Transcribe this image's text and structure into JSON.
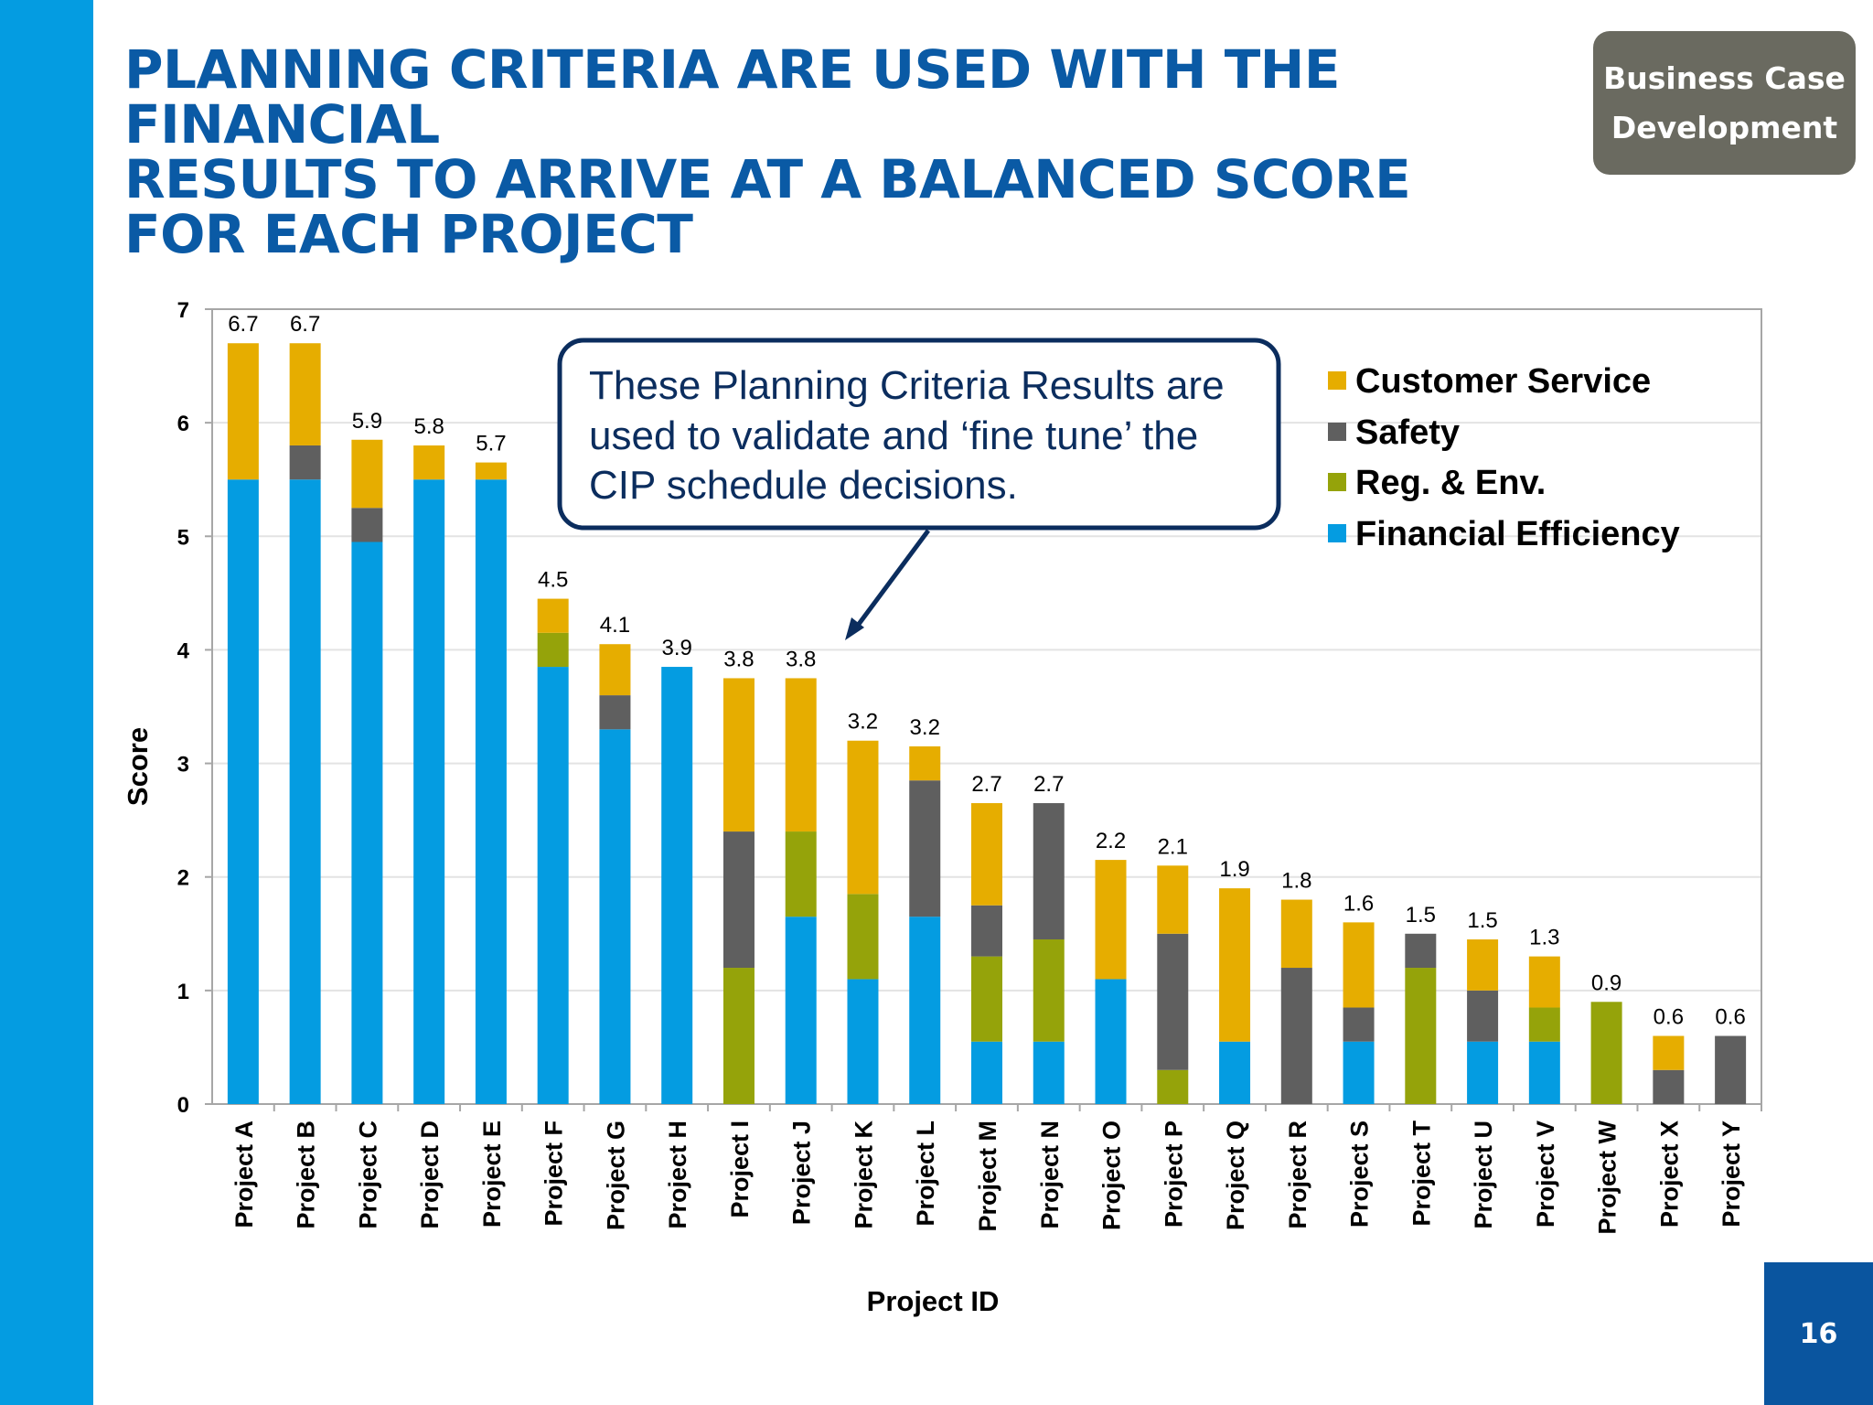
{
  "slide": {
    "title_lines": [
      "PLANNING CRITERIA ARE USED WITH THE FINANCIAL",
      "RESULTS TO ARRIVE AT A BALANCED SCORE",
      "FOR EACH PROJECT"
    ],
    "badge_lines": [
      "Business Case",
      "Development"
    ],
    "page_number": "16",
    "accent_color": "#049ce1",
    "title_color": "#0a5aa5"
  },
  "callout": {
    "lines": [
      "These Planning Criteria Results are",
      "used to validate and ‘fine tune’ the",
      "CIP schedule decisions."
    ]
  },
  "chart_data": {
    "type": "bar",
    "stacked": true,
    "title": "",
    "xlabel": "Project ID",
    "ylabel": "Score",
    "ylim": [
      0,
      7
    ],
    "yticks": [
      0,
      1,
      2,
      3,
      4,
      5,
      6,
      7
    ],
    "grid": true,
    "legend_position": "top-right",
    "categories": [
      "Project A",
      "Project B",
      "Project C",
      "Project D",
      "Project E",
      "Project F",
      "Project G",
      "Project H",
      "Project I",
      "Project J",
      "Project K",
      "Project L",
      "Project M",
      "Project N",
      "Project O",
      "Project P",
      "Project Q",
      "Project R",
      "Project S",
      "Project T",
      "Project U",
      "Project V",
      "Project W",
      "Project X",
      "Project Y"
    ],
    "series": [
      {
        "name": "Financial Efficiency",
        "color": "#049ce1",
        "values": [
          5.5,
          5.5,
          4.95,
          5.5,
          5.5,
          3.85,
          3.3,
          3.85,
          0,
          1.65,
          1.1,
          1.65,
          0.55,
          0.55,
          1.1,
          0,
          0.55,
          0,
          0.55,
          0,
          0.55,
          0.55,
          0,
          0,
          0
        ]
      },
      {
        "name": "Reg. & Env.",
        "color": "#95a30a",
        "values": [
          0,
          0,
          0,
          0,
          0,
          0.3,
          0,
          0,
          1.2,
          0.75,
          0.75,
          0,
          0.75,
          0.9,
          0,
          0.3,
          0,
          0,
          0,
          1.2,
          0,
          0.3,
          0.9,
          0,
          0
        ]
      },
      {
        "name": "Safety",
        "color": "#5f5f5f",
        "values": [
          0,
          0.3,
          0.3,
          0,
          0,
          0,
          0.3,
          0,
          1.2,
          0,
          0,
          1.2,
          0.45,
          1.2,
          0,
          1.2,
          0,
          1.2,
          0.3,
          0.3,
          0.45,
          0,
          0,
          0.3,
          0.6
        ]
      },
      {
        "name": "Customer Service",
        "color": "#e6ad00",
        "values": [
          1.2,
          0.9,
          0.6,
          0.3,
          0.15,
          0.3,
          0.45,
          0,
          1.35,
          1.35,
          1.35,
          0.3,
          0.9,
          0,
          1.05,
          0.6,
          1.35,
          0.6,
          0.75,
          0,
          0.45,
          0.45,
          0,
          0.3,
          0
        ]
      }
    ],
    "legend_order": [
      "Customer Service",
      "Safety",
      "Reg. & Env.",
      "Financial Efficiency"
    ],
    "total_labels": [
      "6.7",
      "6.7",
      "5.9",
      "5.8",
      "5.7",
      "4.5",
      "4.1",
      "3.9",
      "3.8",
      "3.8",
      "3.2",
      "3.2",
      "2.7",
      "2.7",
      "2.2",
      "2.1",
      "1.9",
      "1.8",
      "1.6",
      "1.5",
      "1.5",
      "1.3",
      "0.9",
      "0.6",
      "0.6"
    ]
  }
}
